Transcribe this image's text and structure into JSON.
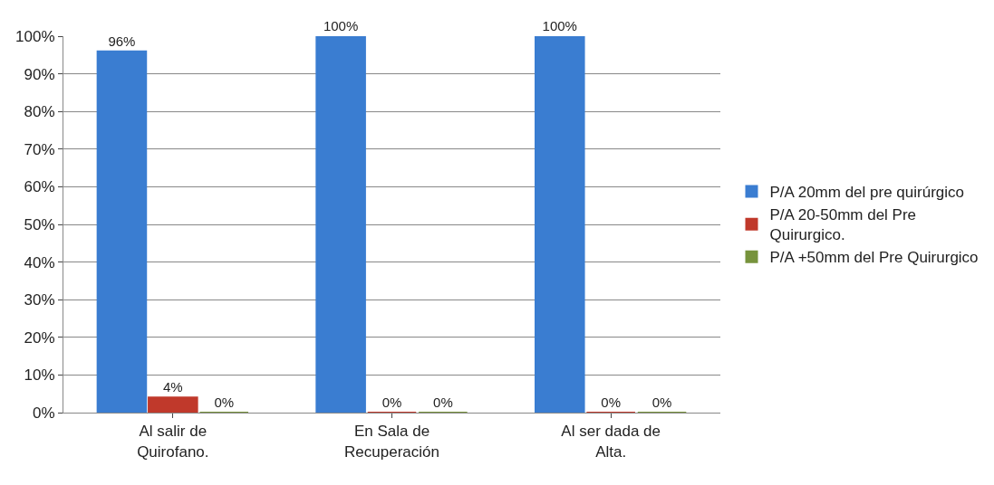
{
  "chart_data": {
    "type": "bar",
    "categories": [
      "Al salir de Quirofano.",
      "En Sala de Recuperación",
      "Al ser dada de Alta."
    ],
    "series": [
      {
        "name": "P/A 20mm del pre quirúrgico",
        "color": "#3a7dd1",
        "values": [
          96,
          100,
          100
        ],
        "value_labels": [
          "96%",
          "100%",
          "100%"
        ]
      },
      {
        "name": "P/A 20-50mm del Pre Quirurgico.",
        "color": "#c0392b",
        "values": [
          4,
          0,
          0
        ],
        "value_labels": [
          "4%",
          "0%",
          "0%"
        ]
      },
      {
        "name": "P/A +50mm del Pre Quirurgico",
        "color": "#77933c",
        "values": [
          0,
          0,
          0
        ],
        "value_labels": [
          "0%",
          "0%",
          "0%"
        ]
      }
    ],
    "ylim": [
      0,
      100
    ],
    "yticks": [
      {
        "value": 0,
        "label": "0%"
      },
      {
        "value": 10,
        "label": "10%"
      },
      {
        "value": 20,
        "label": "20%"
      },
      {
        "value": 30,
        "label": "30%"
      },
      {
        "value": 40,
        "label": "40%"
      },
      {
        "value": 50,
        "label": "50%"
      },
      {
        "value": 60,
        "label": "60%"
      },
      {
        "value": 70,
        "label": "70%"
      },
      {
        "value": 80,
        "label": "80%"
      },
      {
        "value": 90,
        "label": "90%"
      },
      {
        "value": 100,
        "label": "100%"
      }
    ],
    "grid": "y",
    "legend": "right"
  }
}
